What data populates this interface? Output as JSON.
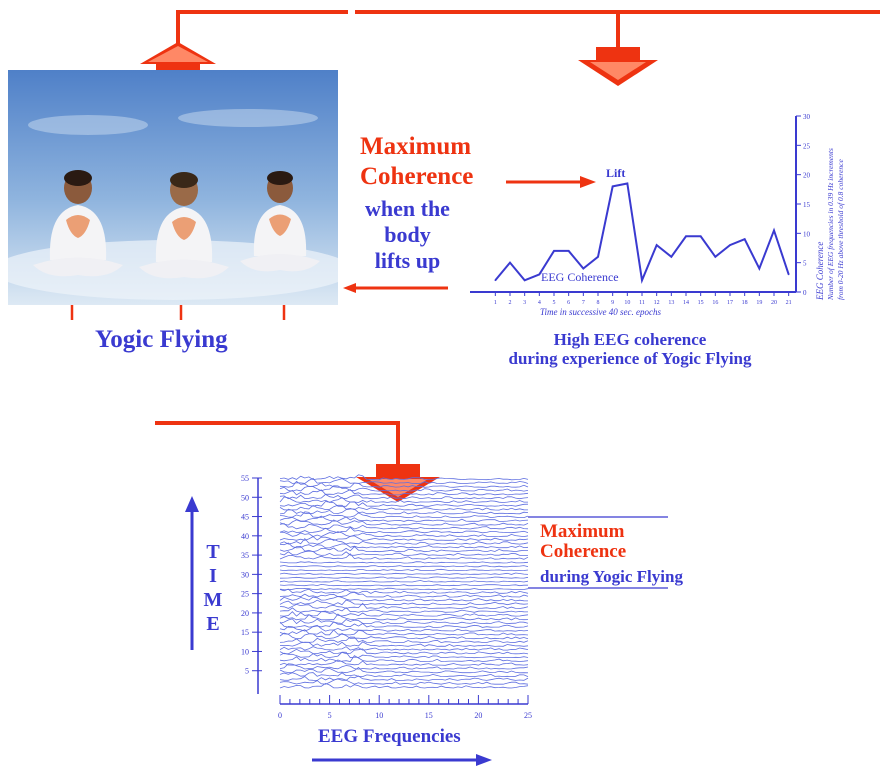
{
  "photo_caption": "Yogic Flying",
  "annotation": {
    "max_line1": "Maximum",
    "max_line2": "Coherence",
    "when_line1": "when the",
    "when_line2": "body",
    "when_line3": "lifts up"
  },
  "coherence_chart": {
    "lift_label": "Lift",
    "series_label": "EEG Coherence",
    "x_title": "Time in successive 40 sec. epochs",
    "y_title_line1": "EEG Coherence",
    "y_title_line2": "Number of EEG frequencies in 0.39 Hz increments",
    "y_title_line3": "from 0-20 Hz above threshold of 0.8 coherence",
    "caption_line1": "High EEG coherence",
    "caption_line2": "during experience of Yogic Flying"
  },
  "spectrogram": {
    "time_label": [
      "T",
      "I",
      "M",
      "E"
    ],
    "x_title": "EEG Frequencies",
    "max_line1": "Maximum",
    "max_line2": "Coherence",
    "during": "during Yogic Flying"
  },
  "colors": {
    "accent_red": "#ee3311",
    "text_blue": "#3a3ad0",
    "trace_blue": "#5e6ee0"
  },
  "chart_data": [
    {
      "type": "line",
      "x": [
        1,
        2,
        3,
        4,
        5,
        6,
        7,
        8,
        9,
        10,
        11,
        12,
        13,
        14,
        15,
        16,
        17,
        18,
        19,
        20,
        21
      ],
      "values": [
        2,
        5,
        2,
        3,
        7,
        7,
        4,
        6,
        18,
        18.5,
        2,
        8,
        6,
        9.5,
        9.5,
        6,
        8,
        9,
        4,
        10.5,
        3
      ],
      "xlabel": "Time in successive 40 sec. epochs",
      "ylabel": "EEG Coherence",
      "ylim": [
        0,
        30
      ],
      "yticks": [
        0,
        5,
        10,
        15,
        20,
        25,
        30
      ],
      "xticks": [
        1,
        2,
        3,
        4,
        5,
        6,
        7,
        8,
        9,
        10,
        11,
        12,
        13,
        14,
        15,
        16,
        17,
        18,
        19,
        20,
        21
      ],
      "annotations": [
        "Lift",
        "EEG Coherence"
      ]
    },
    {
      "type": "line",
      "xlabel": "EEG Frequencies",
      "ylabel": "TIME",
      "xlim": [
        0,
        25
      ],
      "ylim": [
        0,
        55
      ],
      "xticks": [
        0,
        5,
        10,
        15,
        20,
        25
      ],
      "yticks": [
        5,
        10,
        15,
        20,
        25,
        30,
        35,
        40,
        45,
        50,
        55
      ]
    }
  ]
}
